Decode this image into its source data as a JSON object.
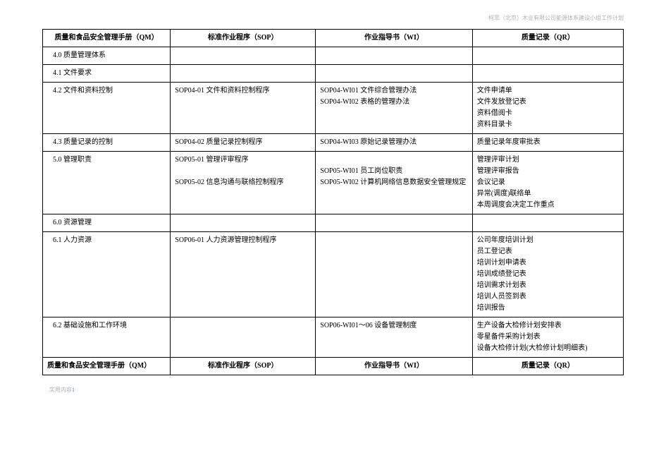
{
  "header_right": "柯菲（北京）木业有限公司能源体系建设小组工作计划",
  "columns": {
    "c1": "质量和食品安全管理手册（QM）",
    "c2": "标准作业程序（SOP）",
    "c3": "作业指导书（WI）",
    "c4": "质量记录（QR）"
  },
  "rows": [
    {
      "c1": "4.0 质量管理体系",
      "c2": "",
      "c3": "",
      "c4": ""
    },
    {
      "c1": "4.1 文件要求",
      "c2": "",
      "c3": "",
      "c4": ""
    },
    {
      "c1": "4.2 文件和资料控制",
      "c2": "SOP04-01 文件和资料控制程序",
      "c3": "SOP04-WI01 文件综合管理办法\nSOP04-WI02 表格的管理办法",
      "c4": "文件申请单\n文件发放登记表\n资料借阅卡\n资料目录卡"
    },
    {
      "c1": "4.3 质量记录的控制",
      "c2": "SOP04-02 质量记录控制程序",
      "c3": "SOP04-WI03 原始记录管理办法",
      "c4": "质量记录年度审批表"
    },
    {
      "c1": "5.0 管理职责",
      "c2": "SOP05-01 管理评审程序\n\nSOP05-02 信息沟通与联络控制程序",
      "c3": "\nSOP05-WI01 员工岗位职责\nSOP05-WI02 计算机网络信息数据安全管理规定",
      "c4": "管理评审计划\n管理评审报告\n会议记录\n异常(调度)联络单\n     本周调度会决定工作重点"
    },
    {
      "c1": "6.0 资源管理",
      "c2": "",
      "c3": "",
      "c4": ""
    },
    {
      "c1": "6.1 人力资源",
      "c2": "SOP06-01 人力资源管理控制程序",
      "c3": "",
      "c4": "公司年度培训计划\n员工登记表\n培训计划申请表\n培训成绩登记表\n培训需求计划表\n培训人员签到表\n培训报告"
    },
    {
      "c1": "6.2 基础设施和工作环境",
      "c2": "",
      "c3": "SOP06-WI01～06 设备管理制度",
      "c4": "生产设备大检修计划安排表\n零星备件采购计划表\n设备大检修计划(大检修计划明细表)"
    }
  ],
  "footer_row": {
    "c1": "质量和食品安全管理手册（QM）",
    "c2": "标准作业程序（SOP）",
    "c3": "作业指导书（WI）",
    "c4": "质量记录（QR）"
  },
  "page_footer_text": "实用内容",
  "page_footer_num": "1"
}
